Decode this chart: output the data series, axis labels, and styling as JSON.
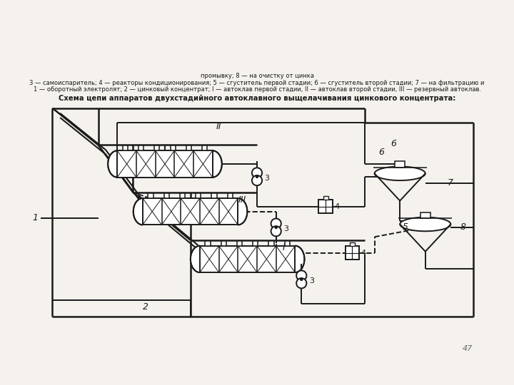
{
  "title": "Схема цепи аппаратов двухстадийного автоклавного выщелачивания цинкового концентрата:",
  "caption_lines": [
    "1 — оборотный электролят; 2 — цинковый концентрат; I — автоклав первой стадии, II — автоклав второй стадии, III — резервный автоклав.",
    "3 — самоиспаритель; 4 — реакторы кондиционирования; 5 — сгуститель первой стадии; 6 — сгуститель второй стадии; 7 — на фильтрацию и",
    "промывку; 8 — на очистку от цинка"
  ],
  "bg_color": "#f5f2ee",
  "line_color": "#1a1a1a",
  "page_number": "47"
}
